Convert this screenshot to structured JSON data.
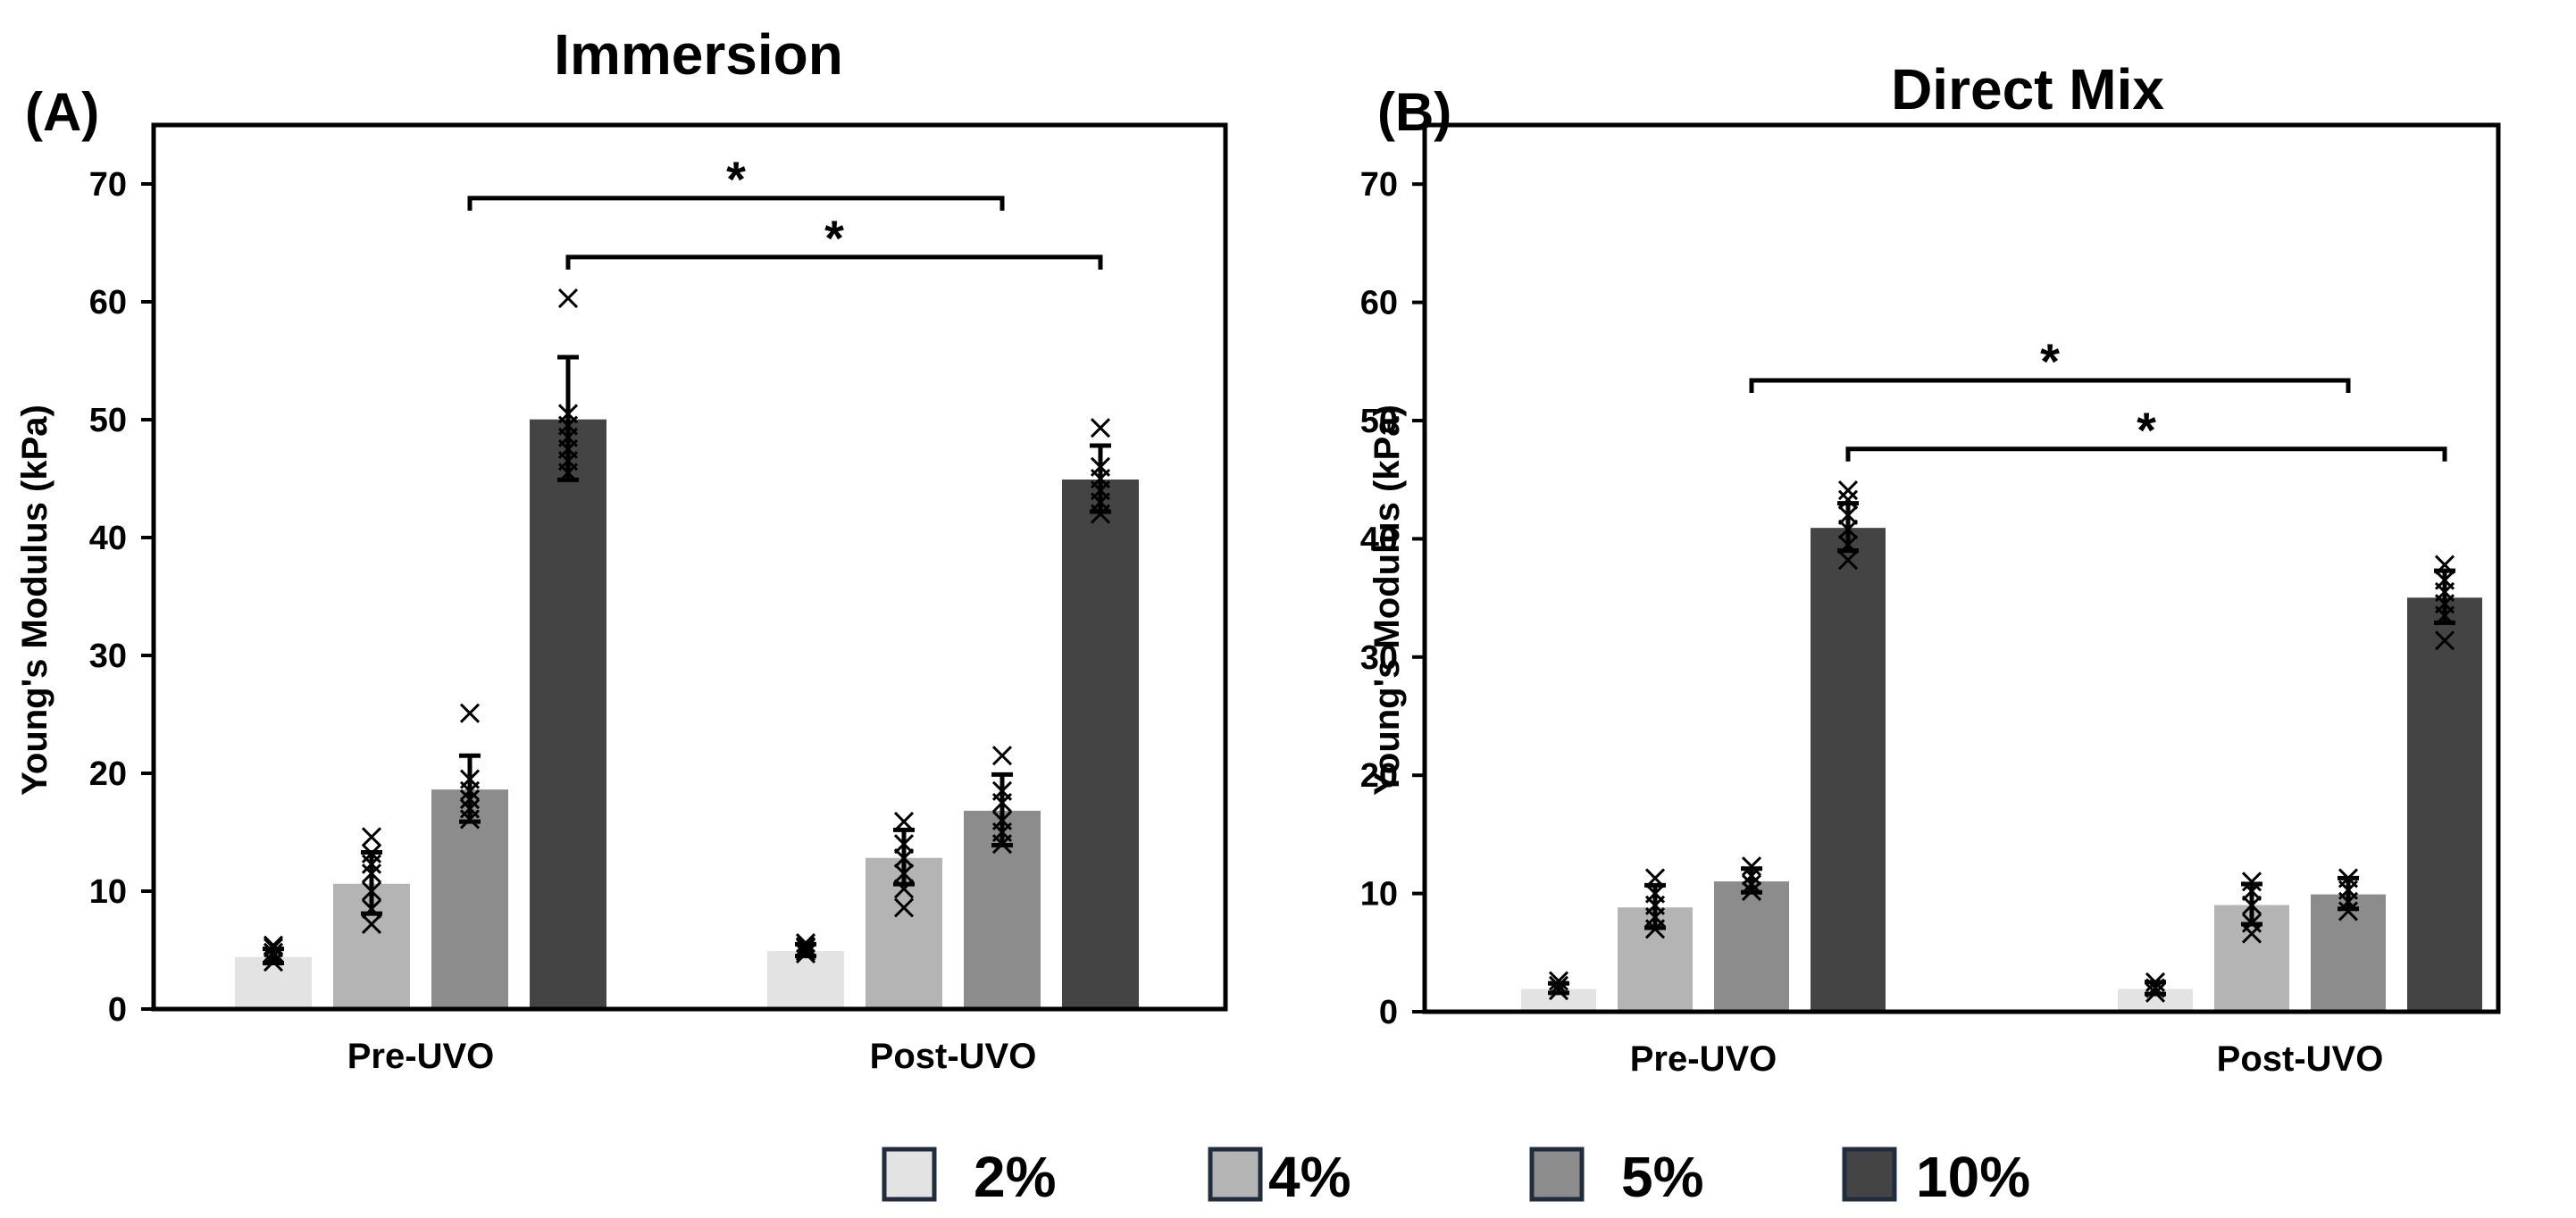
{
  "chart_data": [
    {
      "type": "bar",
      "panel_label": "(A)",
      "title": "Immersion",
      "xlabel": "",
      "ylabel": "Young's Modulus (kPa)",
      "ylim": [
        0,
        75
      ],
      "yticks": [
        "0",
        "10",
        "20",
        "30",
        "40",
        "50",
        "60",
        "70"
      ],
      "categories": [
        "Pre-UVO",
        "Post-UVO"
      ],
      "series": [
        {
          "name": "2%",
          "values": [
            4.5,
            5.0
          ],
          "errors": [
            0.6,
            0.5
          ],
          "points": [
            [
              4.0,
              4.5,
              5.2,
              4.8,
              5.4
            ],
            [
              4.7,
              5.2,
              5.6,
              4.9,
              5.3
            ]
          ]
        },
        {
          "name": "4%",
          "values": [
            10.7,
            12.9
          ],
          "errors": [
            2.6,
            2.3
          ],
          "points": [
            [
              7.2,
              8.5,
              10.0,
              11.5,
              12.3,
              13.2,
              14.6
            ],
            [
              8.6,
              10.2,
              11.5,
              12.8,
              14.0,
              15.9
            ]
          ]
        },
        {
          "name": "5%",
          "values": [
            18.7,
            16.9
          ],
          "errors": [
            2.8,
            3.0
          ],
          "points": [
            [
              16.1,
              17.0,
              17.8,
              18.5,
              19.5,
              25.1
            ],
            [
              14.0,
              15.0,
              16.0,
              17.5,
              18.5,
              21.5
            ]
          ]
        },
        {
          "name": "10%",
          "values": [
            50.1,
            45.0
          ],
          "errors": [
            5.2,
            2.8
          ],
          "points": [
            [
              45.5,
              46.5,
              47.5,
              48.5,
              49.5,
              50.5,
              60.3
            ],
            [
              42.0,
              43.0,
              44.0,
              45.0,
              46.0,
              49.3
            ]
          ]
        }
      ],
      "significance": [
        {
          "from": [
            0,
            2
          ],
          "to": [
            1,
            2
          ],
          "height": 68.8,
          "label": "*"
        },
        {
          "from": [
            0,
            3
          ],
          "to": [
            1,
            3
          ],
          "height": 63.8,
          "label": "*"
        }
      ],
      "legend": "bottom"
    },
    {
      "type": "bar",
      "panel_label": "(B)",
      "title": "Direct Mix",
      "xlabel": "",
      "ylabel": "Young's Modulus (kPa)",
      "ylim": [
        0,
        75
      ],
      "yticks": [
        "0",
        "10",
        "20",
        "30",
        "40",
        "50",
        "60",
        "70"
      ],
      "categories": [
        "Pre-UVO",
        "Post-UVO"
      ],
      "series": [
        {
          "name": "2%",
          "values": [
            2.0,
            2.0
          ],
          "errors": [
            0.4,
            0.5
          ],
          "points": [
            [
              1.8,
              2.2,
              2.6
            ],
            [
              1.6,
              2.0,
              2.5
            ]
          ]
        },
        {
          "name": "4%",
          "values": [
            8.9,
            9.1
          ],
          "errors": [
            1.8,
            1.7
          ],
          "points": [
            [
              7.0,
              8.0,
              9.0,
              10.0,
              11.3
            ],
            [
              6.6,
              7.5,
              9.0,
              10.2,
              11.0
            ]
          ]
        },
        {
          "name": "5%",
          "values": [
            11.1,
            10.0
          ],
          "errors": [
            1.0,
            1.3
          ],
          "points": [
            [
              10.2,
              10.8,
              11.5,
              12.3
            ],
            [
              8.5,
              9.3,
              10.3,
              11.3
            ]
          ]
        },
        {
          "name": "10%",
          "values": [
            41.0,
            35.1
          ],
          "errors": [
            2.0,
            2.2
          ],
          "points": [
            [
              38.2,
              39.5,
              40.8,
              42.0,
              43.3,
              44.1
            ],
            [
              31.4,
              33.5,
              34.5,
              35.5,
              36.5,
              37.8
            ]
          ]
        }
      ],
      "significance": [
        {
          "from": [
            0,
            2
          ],
          "to": [
            1,
            2
          ],
          "height": 53.4,
          "label": "*"
        },
        {
          "from": [
            0,
            3
          ],
          "to": [
            1,
            3
          ],
          "height": 47.6,
          "label": "*"
        }
      ],
      "legend": "bottom"
    }
  ],
  "legend": [
    {
      "label": "2%",
      "color": "#e3e3e3"
    },
    {
      "label": "4%",
      "color": "#b4b4b4"
    },
    {
      "label": "5%",
      "color": "#8c8c8c"
    },
    {
      "label": "10%",
      "color": "#444444"
    }
  ],
  "colors": {
    "bar_stroke": "#ffffff",
    "axis": "#000000",
    "legend_stroke": "#1f2d3d"
  }
}
